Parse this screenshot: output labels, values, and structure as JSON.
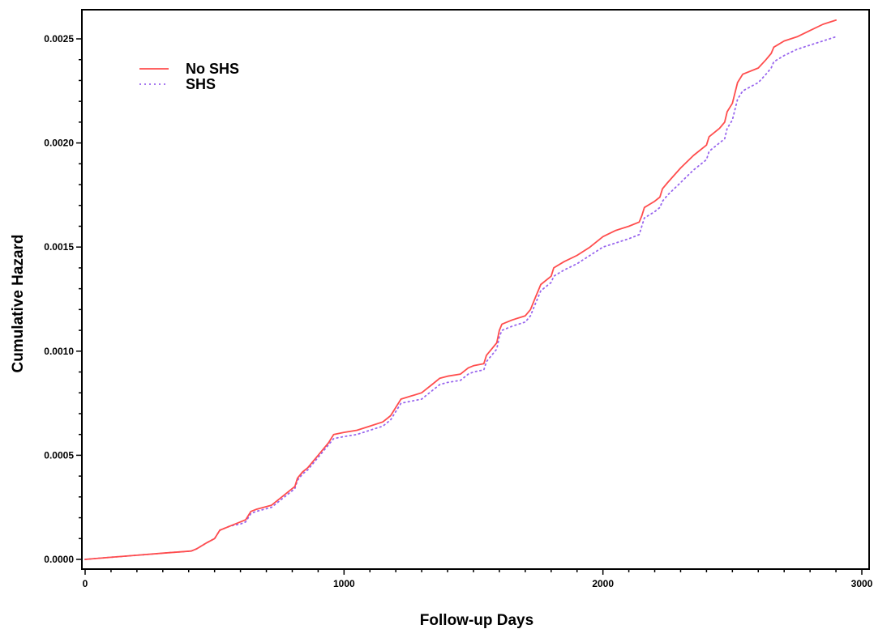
{
  "chart_data": {
    "type": "line",
    "title": "",
    "xlabel": "Follow-up Days",
    "ylabel": "Cumulative Hazard",
    "xlim": [
      0,
      3000
    ],
    "ylim": [
      0,
      0.0025
    ],
    "x_ticks": [
      0,
      1000,
      2000,
      3000
    ],
    "x_tick_labels": [
      "0",
      "1000",
      "2000",
      "3000"
    ],
    "y_ticks": [
      0,
      0.0005,
      0.001,
      0.0015,
      0.002,
      0.0025
    ],
    "y_tick_labels": [
      "0.0000",
      "0.0005",
      "0.0010",
      "0.0015",
      "0.0020",
      "0.0025"
    ],
    "grid": false,
    "legend_position": "top-left",
    "series": [
      {
        "name": "No SHS",
        "color": "#ff4d4d",
        "line_style": "solid",
        "x": [
          0,
          100,
          200,
          300,
          410,
          430,
          470,
          500,
          520,
          560,
          600,
          620,
          640,
          660,
          720,
          760,
          790,
          810,
          820,
          840,
          860,
          880,
          900,
          920,
          940,
          960,
          1000,
          1050,
          1100,
          1150,
          1180,
          1190,
          1210,
          1220,
          1300,
          1320,
          1340,
          1370,
          1400,
          1450,
          1480,
          1500,
          1540,
          1550,
          1570,
          1590,
          1600,
          1610,
          1650,
          1700,
          1720,
          1740,
          1760,
          1800,
          1810,
          1850,
          1900,
          1950,
          2000,
          2050,
          2100,
          2140,
          2150,
          2160,
          2200,
          2220,
          2230,
          2250,
          2300,
          2350,
          2400,
          2410,
          2450,
          2470,
          2480,
          2500,
          2510,
          2520,
          2540,
          2600,
          2630,
          2650,
          2660,
          2700,
          2750,
          2800,
          2850,
          2900
        ],
        "values": [
          0.0,
          1e-05,
          2e-05,
          3e-05,
          4e-05,
          5e-05,
          8e-05,
          0.0001,
          0.00014,
          0.00016,
          0.00018,
          0.00019,
          0.00023,
          0.00024,
          0.00026,
          0.0003,
          0.00033,
          0.00035,
          0.00039,
          0.00042,
          0.00044,
          0.00047,
          0.0005,
          0.00053,
          0.00056,
          0.0006,
          0.00061,
          0.00062,
          0.00064,
          0.00066,
          0.00069,
          0.00071,
          0.00075,
          0.00077,
          0.0008,
          0.00082,
          0.00084,
          0.00087,
          0.00088,
          0.00089,
          0.00092,
          0.00093,
          0.00094,
          0.00098,
          0.00101,
          0.00104,
          0.0011,
          0.00113,
          0.00115,
          0.00117,
          0.0012,
          0.00126,
          0.00132,
          0.00136,
          0.0014,
          0.00143,
          0.00146,
          0.0015,
          0.00155,
          0.00158,
          0.0016,
          0.00162,
          0.00165,
          0.00169,
          0.00172,
          0.00174,
          0.00178,
          0.00181,
          0.00188,
          0.00194,
          0.00199,
          0.00203,
          0.00207,
          0.0021,
          0.00215,
          0.00219,
          0.00224,
          0.00229,
          0.00233,
          0.00236,
          0.0024,
          0.00243,
          0.00246,
          0.00249,
          0.00251,
          0.00254,
          0.00257,
          0.00259
        ]
      },
      {
        "name": "SHS",
        "color": "#9966ee",
        "line_style": "dotted",
        "x": [
          0,
          100,
          200,
          300,
          410,
          430,
          470,
          500,
          520,
          560,
          600,
          620,
          640,
          660,
          720,
          760,
          790,
          810,
          820,
          840,
          860,
          880,
          900,
          920,
          940,
          960,
          1000,
          1050,
          1100,
          1150,
          1180,
          1190,
          1210,
          1220,
          1300,
          1320,
          1340,
          1370,
          1400,
          1450,
          1480,
          1500,
          1540,
          1550,
          1570,
          1590,
          1600,
          1610,
          1650,
          1700,
          1720,
          1740,
          1760,
          1800,
          1810,
          1850,
          1900,
          1950,
          2000,
          2050,
          2100,
          2140,
          2150,
          2160,
          2200,
          2220,
          2230,
          2250,
          2300,
          2350,
          2400,
          2410,
          2450,
          2470,
          2480,
          2500,
          2510,
          2520,
          2540,
          2600,
          2630,
          2650,
          2660,
          2700,
          2750,
          2800,
          2850,
          2900
        ],
        "values": [
          0.0,
          1e-05,
          2e-05,
          3e-05,
          4e-05,
          5e-05,
          8e-05,
          0.0001,
          0.00014,
          0.00016,
          0.00017,
          0.00018,
          0.00022,
          0.00023,
          0.00025,
          0.00029,
          0.00032,
          0.00034,
          0.00038,
          0.00041,
          0.00043,
          0.00046,
          0.00049,
          0.00052,
          0.00055,
          0.00058,
          0.00059,
          0.0006,
          0.00062,
          0.00064,
          0.00067,
          0.00069,
          0.00073,
          0.00075,
          0.00077,
          0.00079,
          0.00081,
          0.00084,
          0.00085,
          0.00086,
          0.00089,
          0.0009,
          0.00091,
          0.00095,
          0.00098,
          0.00101,
          0.00107,
          0.0011,
          0.00112,
          0.00114,
          0.00117,
          0.00123,
          0.00129,
          0.00133,
          0.00136,
          0.00139,
          0.00142,
          0.00146,
          0.0015,
          0.00152,
          0.00154,
          0.00156,
          0.0016,
          0.00164,
          0.00167,
          0.00169,
          0.00172,
          0.00175,
          0.00181,
          0.00187,
          0.00192,
          0.00196,
          0.002,
          0.00202,
          0.00207,
          0.00211,
          0.00216,
          0.00221,
          0.00225,
          0.00229,
          0.00233,
          0.00236,
          0.00239,
          0.00242,
          0.00245,
          0.00247,
          0.00249,
          0.00251
        ]
      }
    ]
  }
}
